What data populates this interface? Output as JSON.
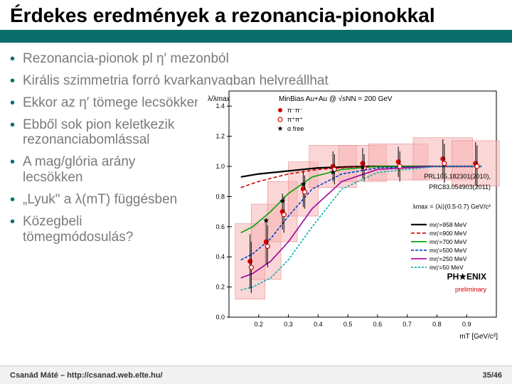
{
  "slide": {
    "title": "Érdekes eredmények a rezonancia-pionokkal",
    "bullets": [
      "Rezonancia-pionok pl η′ mezonból",
      "Királis szimmetria forró kvarkanyagban helyreállhat",
      "Ekkor az η′ tömege lecsökken",
      "Ebből sok pion keletkezik rezonanciabomlással",
      "A mag/glória arány lecsökken",
      "„Lyuk\" a λ(mT) függésben",
      "Közegbeli tömegmódosulás?"
    ]
  },
  "footer": {
    "left": "Csanád Máté – http://csanad.web.elte.hu/",
    "right": "35/46"
  },
  "chart": {
    "type": "scatter+line",
    "title": "MinBias Au+Au @ √sNN = 200 GeV",
    "xlabel": "mT [GeV/c²]",
    "ylabel": "λ/λmax",
    "xlim": [
      0.1,
      1.0
    ],
    "ylim": [
      0.0,
      1.5
    ],
    "xtick_step": 0.1,
    "ytick_step": 0.2,
    "background": "#ffffff",
    "tick_fontsize": 9,
    "label_fontsize": 10,
    "data_markers": [
      {
        "name": "π⁻π⁻",
        "symbol": "circle",
        "fill": "#d00000",
        "stroke": "#d00000",
        "points": [
          {
            "x": 0.171,
            "y": 0.37,
            "ey": 0.18,
            "bx": 0.05,
            "by": 0.25
          },
          {
            "x": 0.225,
            "y": 0.5,
            "ey": 0.15,
            "bx": 0.05,
            "by": 0.25
          },
          {
            "x": 0.28,
            "y": 0.7,
            "ey": 0.12,
            "bx": 0.05,
            "by": 0.2
          },
          {
            "x": 0.35,
            "y": 0.85,
            "ey": 0.12,
            "bx": 0.05,
            "by": 0.18
          },
          {
            "x": 0.45,
            "y": 1.0,
            "ey": 0.1,
            "bx": 0.08,
            "by": 0.14
          },
          {
            "x": 0.55,
            "y": 1.02,
            "ey": 0.1,
            "bx": 0.08,
            "by": 0.12
          },
          {
            "x": 0.67,
            "y": 1.03,
            "ey": 0.1,
            "bx": 0.1,
            "by": 0.12
          },
          {
            "x": 0.82,
            "y": 1.05,
            "ey": 0.13,
            "bx": 0.1,
            "by": 0.14
          },
          {
            "x": 0.93,
            "y": 1.02,
            "ey": 0.14,
            "bx": 0.08,
            "by": 0.15
          }
        ]
      },
      {
        "name": "π⁺π⁺",
        "symbol": "circle-open",
        "fill": "none",
        "stroke": "#d00000",
        "points": [
          {
            "x": 0.175,
            "y": 0.33,
            "ey": 0.17
          },
          {
            "x": 0.23,
            "y": 0.47,
            "ey": 0.14
          },
          {
            "x": 0.285,
            "y": 0.68,
            "ey": 0.12
          },
          {
            "x": 0.355,
            "y": 0.83,
            "ey": 0.11
          },
          {
            "x": 0.455,
            "y": 0.98,
            "ey": 0.1
          },
          {
            "x": 0.555,
            "y": 0.99,
            "ey": 0.09
          },
          {
            "x": 0.675,
            "y": 1.0,
            "ey": 0.1
          },
          {
            "x": 0.825,
            "y": 1.02,
            "ey": 0.13
          },
          {
            "x": 0.935,
            "y": 1.0,
            "ey": 0.14
          }
        ]
      }
    ],
    "curves": [
      {
        "name": "mη′=958 MeV",
        "color": "#000000",
        "width": 2.2,
        "dash": "",
        "pts": [
          [
            0.14,
            0.93
          ],
          [
            0.2,
            0.95
          ],
          [
            0.3,
            0.97
          ],
          [
            0.4,
            0.99
          ],
          [
            0.55,
            1.0
          ],
          [
            0.75,
            1.0
          ],
          [
            0.95,
            1.0
          ]
        ]
      },
      {
        "name": "mη′=900 MeV",
        "color": "#d00000",
        "width": 1.6,
        "dash": "5,3",
        "pts": [
          [
            0.14,
            0.86
          ],
          [
            0.2,
            0.9
          ],
          [
            0.3,
            0.95
          ],
          [
            0.4,
            0.98
          ],
          [
            0.55,
            1.0
          ],
          [
            0.75,
            1.0
          ],
          [
            0.95,
            1.0
          ]
        ]
      },
      {
        "name": "mη′=700 MeV",
        "color": "#00a000",
        "width": 1.6,
        "dash": "",
        "pts": [
          [
            0.14,
            0.56
          ],
          [
            0.18,
            0.6
          ],
          [
            0.24,
            0.7
          ],
          [
            0.3,
            0.82
          ],
          [
            0.38,
            0.93
          ],
          [
            0.48,
            0.98
          ],
          [
            0.6,
            1.0
          ],
          [
            0.8,
            1.0
          ],
          [
            0.95,
            1.0
          ]
        ]
      },
      {
        "name": "mη′=500 MeV",
        "color": "#0040d0",
        "width": 1.6,
        "dash": "4,2",
        "pts": [
          [
            0.14,
            0.38
          ],
          [
            0.18,
            0.42
          ],
          [
            0.24,
            0.52
          ],
          [
            0.3,
            0.67
          ],
          [
            0.38,
            0.85
          ],
          [
            0.48,
            0.95
          ],
          [
            0.6,
            0.99
          ],
          [
            0.8,
            1.0
          ],
          [
            0.95,
            1.0
          ]
        ]
      },
      {
        "name": "mη′=250 MeV",
        "color": "#a000a0",
        "width": 1.6,
        "dash": "",
        "pts": [
          [
            0.14,
            0.26
          ],
          [
            0.18,
            0.29
          ],
          [
            0.24,
            0.37
          ],
          [
            0.3,
            0.5
          ],
          [
            0.38,
            0.72
          ],
          [
            0.48,
            0.9
          ],
          [
            0.6,
            0.98
          ],
          [
            0.8,
            1.0
          ],
          [
            0.95,
            1.0
          ]
        ]
      },
      {
        "name": "mη′=50 MeV",
        "color": "#00b0b0",
        "width": 1.6,
        "dash": "3,2",
        "pts": [
          [
            0.14,
            0.18
          ],
          [
            0.18,
            0.2
          ],
          [
            0.24,
            0.26
          ],
          [
            0.3,
            0.38
          ],
          [
            0.38,
            0.6
          ],
          [
            0.48,
            0.85
          ],
          [
            0.6,
            0.96
          ],
          [
            0.8,
            1.0
          ],
          [
            0.95,
            1.0
          ]
        ]
      }
    ],
    "alpha_free": {
      "name": "α free",
      "color": "#000000",
      "symbol": "star",
      "points": [
        {
          "x": 0.225,
          "y": 0.64
        },
        {
          "x": 0.28,
          "y": 0.77
        },
        {
          "x": 0.35,
          "y": 0.88
        },
        {
          "x": 0.45,
          "y": 0.96
        },
        {
          "x": 0.55,
          "y": 0.99
        }
      ]
    },
    "annotations": {
      "prl": "PRL105.182301(2010),",
      "prc": "PRC83.054903(2011)",
      "lambdamax": "λmax = ⟨λi⟩(0.5-0.7) GeV/c²",
      "phenix": "PHENIX",
      "prelim": "preliminary"
    },
    "legend_items_top": [
      {
        "label": "π⁻π⁻",
        "type": "filled-circle",
        "color": "#d00000"
      },
      {
        "label": "π⁺π⁺",
        "type": "open-circle",
        "color": "#d00000"
      },
      {
        "label": "α free",
        "type": "star",
        "color": "#000000"
      }
    ]
  }
}
